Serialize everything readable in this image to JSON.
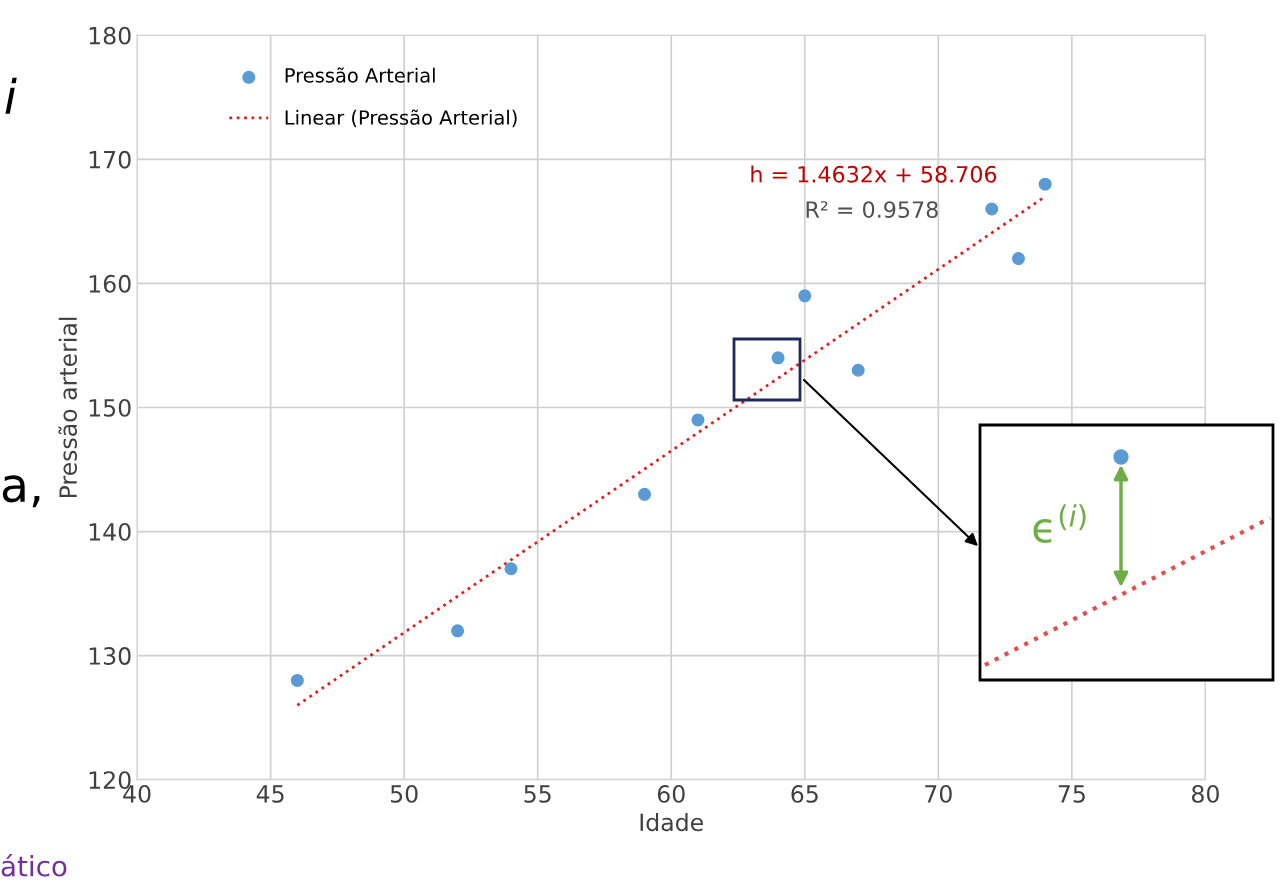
{
  "chart_data": {
    "type": "scatter",
    "xlabel": "Idade",
    "ylabel": "Pressão arterial",
    "xlim": [
      40,
      80
    ],
    "xticks": [
      40,
      45,
      50,
      55,
      60,
      65,
      70,
      75,
      80
    ],
    "ylim": [
      120,
      180
    ],
    "yticks": [
      120,
      130,
      140,
      150,
      160,
      170,
      180
    ],
    "grid": true,
    "legend": "top left",
    "marker": "circle",
    "series": [
      {
        "name": "Pressão Arterial",
        "color": "#5b9bd5",
        "x": [
          46,
          52,
          54,
          59,
          61,
          64,
          65,
          67,
          72,
          73,
          74
        ],
        "values": [
          128,
          132,
          137,
          143,
          149,
          154,
          159,
          153,
          166,
          162,
          168
        ]
      },
      {
        "name": "Linear (Pressão Arterial)",
        "type": "line",
        "color": "#e02020",
        "line_style": "dotted",
        "marker": "none",
        "x": [
          46,
          74
        ],
        "values": [
          126,
          167
        ]
      }
    ],
    "annotations": [
      "h = 1.4632x + 58.706",
      "R² = 0.9578",
      "ϵ$^{(i)}$",
      "i",
      "a,",
      "ático"
    ]
  }
}
